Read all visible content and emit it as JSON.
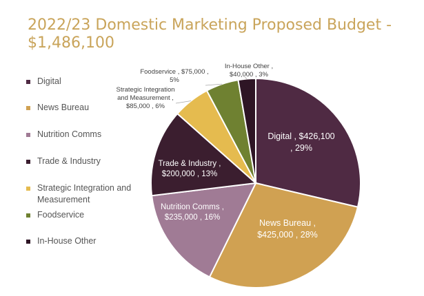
{
  "title_line1": "2022/23 Domestic Marketing Proposed Budget -",
  "title_line2": "$1,486,100",
  "chart_data": {
    "type": "pie",
    "title": "2022/23 Domestic Marketing Proposed Budget - $1,486,100",
    "total": 1486100,
    "legend_position": "left",
    "slices": [
      {
        "name": "Digital",
        "value": 426100,
        "percent": 29,
        "color": "#4f2a43",
        "legend": [
          "Digital"
        ],
        "label_lines": [
          "Digital ,  $426,100",
          ", 29%"
        ],
        "label_color": "#ffffff"
      },
      {
        "name": "News Bureau",
        "value": 425000,
        "percent": 28,
        "color": "#d0a152",
        "legend": [
          "News Bureau"
        ],
        "label_lines": [
          "News Bureau ,",
          "$425,000 , 28%"
        ],
        "label_color": "#ffffff"
      },
      {
        "name": "Nutrition Comms",
        "value": 235000,
        "percent": 16,
        "color": "#a07b95",
        "legend": [
          "Nutrition Comms"
        ],
        "label_lines": [
          "Nutrition Comms ,",
          "$235,000 , 16%"
        ],
        "label_color": "#ffffff"
      },
      {
        "name": "Trade & Industry",
        "value": 200000,
        "percent": 13,
        "color": "#3b1e2f",
        "legend": [
          "Trade & Industry"
        ],
        "label_lines": [
          "Trade & Industry ,",
          "$200,000 , 13%"
        ],
        "label_color": "#ffffff"
      },
      {
        "name": "Strategic Integration and Measurement",
        "value": 85000,
        "percent": 6,
        "color": "#e5bb4f",
        "legend": [
          "Strategic Integration and",
          "Measurement"
        ],
        "label_lines": [
          "Strategic Integration",
          "and Measurement ,",
          "$85,000 , 6%"
        ],
        "label_color": "#404040"
      },
      {
        "name": "Foodservice",
        "value": 75000,
        "percent": 5,
        "color": "#6f8131",
        "legend": [
          "Foodservice"
        ],
        "label_lines": [
          "Foodservice ,  $75,000 ,",
          "5%"
        ],
        "label_color": "#404040"
      },
      {
        "name": "In-House Other",
        "value": 40000,
        "percent": 3,
        "color": "#2e1525",
        "legend": [
          "In-House Other"
        ],
        "label_lines": [
          "In-House Other ,",
          "$40,000 , 3%"
        ],
        "label_color": "#404040"
      }
    ]
  }
}
